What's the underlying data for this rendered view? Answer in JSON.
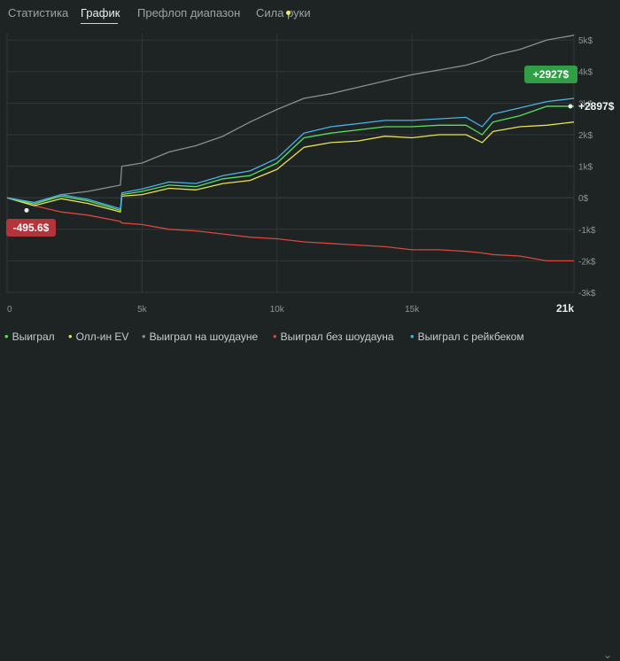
{
  "tabs": [
    {
      "label": "Статистика"
    },
    {
      "label": "График"
    },
    {
      "label": "Префлоп диапазон"
    },
    {
      "label": "Сила руки"
    }
  ],
  "colors": {
    "won": "#58e05f",
    "allin_ev": "#e9e157",
    "showdown": "#8b8e8e",
    "non_showdown": "#d9473d",
    "rake": "#4cb1e6",
    "badge_green": "#2f9e44",
    "badge_red": "#b3353b",
    "grid": "#323838"
  },
  "icons": {
    "legend_marker": "bullet",
    "legend_scroll": "chevron-down-icon",
    "tab_dot": "dot-icon"
  },
  "badges": {
    "max": "+2927$",
    "min": "-495.6$",
    "end_label": "+2897$"
  },
  "chart_data": {
    "type": "line",
    "xlim": [
      0,
      21000
    ],
    "ylim": [
      -3000,
      5200
    ],
    "x_ticks": [
      0,
      5000,
      10000,
      15000,
      21000
    ],
    "x_tick_labels": [
      "0",
      "5k",
      "10k",
      "15k",
      "21k"
    ],
    "y_ticks": [
      5000,
      4000,
      3000,
      2000,
      1000,
      0,
      -1000,
      -2000,
      -3000
    ],
    "y_tick_labels": [
      "5k$",
      "4k$",
      "3k$",
      "2k$",
      "1k$",
      "0$",
      "-1k$",
      "-2k$",
      "-3k$"
    ],
    "grid": true,
    "legend_position": "bottom",
    "x": [
      0,
      1000,
      2000,
      3000,
      4200,
      4250,
      5000,
      6000,
      7000,
      8000,
      9000,
      10000,
      11000,
      12000,
      13000,
      14000,
      15000,
      16000,
      17000,
      17600,
      18000,
      19000,
      20000,
      21000
    ],
    "series": [
      {
        "name": "Выиграл",
        "color_key": "won",
        "values": [
          0,
          -200,
          50,
          -100,
          -400,
          100,
          200,
          400,
          350,
          600,
          700,
          1100,
          1900,
          2050,
          2150,
          2250,
          2250,
          2300,
          2300,
          2000,
          2400,
          2600,
          2900,
          2897
        ]
      },
      {
        "name": "Олл-ин EV",
        "color_key": "allin_ev",
        "values": [
          0,
          -250,
          -30,
          -180,
          -450,
          50,
          100,
          300,
          250,
          450,
          550,
          900,
          1600,
          1750,
          1800,
          1950,
          1900,
          2000,
          2000,
          1750,
          2100,
          2250,
          2300,
          2400
        ]
      },
      {
        "name": "Выиграл на шоудауне",
        "color_key": "showdown",
        "values": [
          0,
          -200,
          100,
          200,
          400,
          1000,
          1100,
          1450,
          1650,
          1950,
          2400,
          2800,
          3150,
          3300,
          3500,
          3700,
          3900,
          4050,
          4200,
          4350,
          4500,
          4700,
          5000,
          5150
        ]
      },
      {
        "name": "Выиграл без шоудауна",
        "color_key": "non_showdown",
        "values": [
          0,
          -250,
          -450,
          -550,
          -750,
          -800,
          -850,
          -1000,
          -1050,
          -1150,
          -1250,
          -1300,
          -1400,
          -1450,
          -1500,
          -1550,
          -1650,
          -1650,
          -1700,
          -1750,
          -1800,
          -1850,
          -2000,
          -2000
        ]
      },
      {
        "name": "Выиграл с рейкбеком",
        "color_key": "rake",
        "values": [
          0,
          -150,
          100,
          -50,
          -350,
          150,
          280,
          500,
          450,
          700,
          850,
          1250,
          2050,
          2250,
          2350,
          2450,
          2450,
          2500,
          2550,
          2250,
          2650,
          2850,
          3050,
          3150
        ]
      }
    ]
  },
  "legend": [
    {
      "label": "Выиграл",
      "color_key": "won"
    },
    {
      "label": "Олл-ин EV",
      "color_key": "allin_ev"
    },
    {
      "label": "Выиграл на шоудауне",
      "color_key": "showdown"
    },
    {
      "label": "Выиграл без шоудауна",
      "color_key": "non_showdown"
    },
    {
      "label": "Выиграл с рейкбеком",
      "color_key": "rake"
    }
  ]
}
